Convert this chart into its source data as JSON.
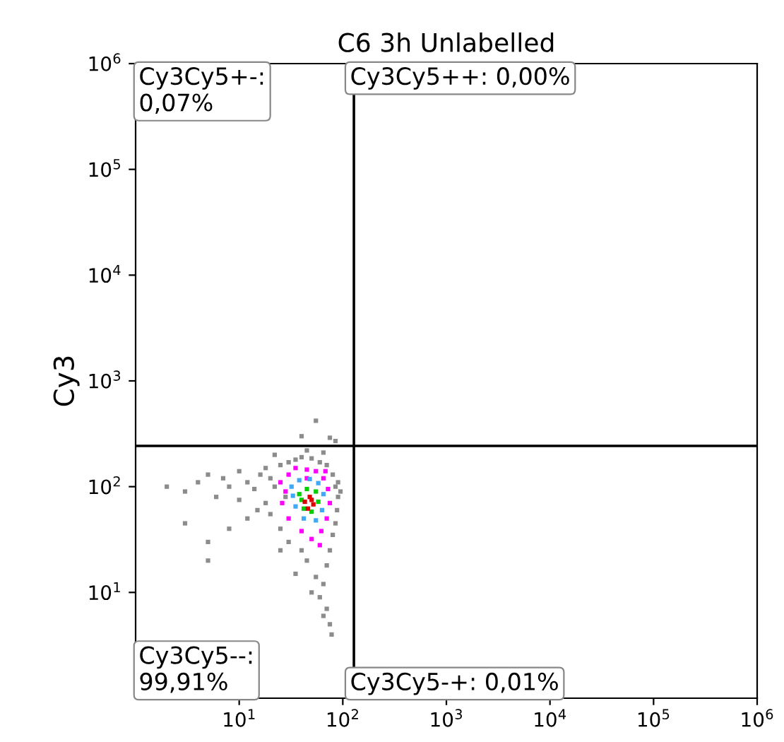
{
  "chart_data": {
    "type": "scatter",
    "title": "C6 3h Unlabelled",
    "ylabel": "Cy3",
    "log": "xy",
    "marker": "square",
    "grid": false,
    "legend": false,
    "xlim": [
      1,
      1000000
    ],
    "ylim": [
      1,
      1000000
    ],
    "xticks": [
      {
        "value": 10,
        "label": "10$^{1}$"
      },
      {
        "value": 100,
        "label": "10$^{2}$"
      },
      {
        "value": 1000,
        "label": "10$^{3}$"
      },
      {
        "value": 10000,
        "label": "10$^{4}$"
      },
      {
        "value": 100000,
        "label": "10$^{5}$"
      },
      {
        "value": 1000000,
        "label": "10$^{6}$"
      }
    ],
    "yticks": [
      {
        "value": 10,
        "label": "10$^{1}$"
      },
      {
        "value": 100,
        "label": "10$^{2}$"
      },
      {
        "value": 1000,
        "label": "10$^{3}$"
      },
      {
        "value": 10000,
        "label": "10$^{4}$"
      },
      {
        "value": 100000,
        "label": "10$^{5}$"
      },
      {
        "value": 1000000,
        "label": "10$^{6}$"
      }
    ],
    "ref_lines": [
      {
        "axis": "x",
        "value": 128,
        "color": "#000000"
      },
      {
        "axis": "y",
        "value": 243,
        "color": "#000000"
      }
    ],
    "annotations": [
      "Cy3Cy5+-:\n0,07%",
      "Cy3Cy5++: 0,00%",
      "Cy3Cy5--:\n99,91%",
      "Cy3Cy5-+: 0,01%"
    ],
    "series": [
      {
        "color": "#8c8c8c",
        "x": [
          2,
          3,
          4,
          5,
          6,
          7,
          8,
          10,
          12,
          14,
          16,
          18,
          20,
          22,
          25,
          28,
          30,
          35,
          40,
          50,
          60,
          70,
          80,
          85,
          90,
          88,
          85,
          80,
          75,
          70,
          65,
          60,
          70,
          75,
          55,
          45,
          40,
          30,
          25,
          20,
          18,
          15,
          12,
          8,
          5,
          3,
          35,
          50,
          25,
          90,
          95,
          65,
          78,
          5,
          10,
          22,
          45,
          65,
          40,
          55,
          75,
          85
        ],
        "values": [
          100,
          90,
          110,
          130,
          80,
          120,
          100,
          140,
          110,
          95,
          130,
          150,
          120,
          100,
          160,
          80,
          170,
          180,
          190,
          185,
          170,
          160,
          130,
          100,
          80,
          60,
          45,
          35,
          25,
          18,
          12,
          9,
          7,
          5,
          14,
          20,
          25,
          30,
          40,
          55,
          70,
          60,
          50,
          40,
          30,
          45,
          15,
          10,
          25,
          110,
          90,
          6,
          4,
          20,
          75,
          200,
          220,
          210,
          300,
          420,
          290,
          270
        ]
      },
      {
        "color": "#ff00ff",
        "x": [
          25,
          30,
          35,
          45,
          55,
          65,
          72,
          75,
          70,
          62,
          50,
          40,
          30,
          26,
          28,
          60,
          45,
          68
        ],
        "values": [
          110,
          130,
          150,
          145,
          140,
          120,
          95,
          70,
          50,
          38,
          32,
          38,
          50,
          70,
          90,
          28,
          120,
          140
        ]
      },
      {
        "color": "#3fa9f5",
        "x": [
          32,
          38,
          48,
          58,
          65,
          63,
          55,
          42,
          35,
          33
        ],
        "values": [
          100,
          115,
          118,
          108,
          85,
          60,
          48,
          50,
          65,
          82
        ]
      },
      {
        "color": "#00d000",
        "x": [
          38,
          45,
          55,
          58,
          50,
          42,
          40
        ],
        "values": [
          85,
          95,
          90,
          72,
          58,
          62,
          75
        ]
      },
      {
        "color": "#e00000",
        "x": [
          43,
          48,
          52,
          46,
          50
        ],
        "values": [
          72,
          80,
          68,
          62,
          75
        ]
      }
    ]
  }
}
